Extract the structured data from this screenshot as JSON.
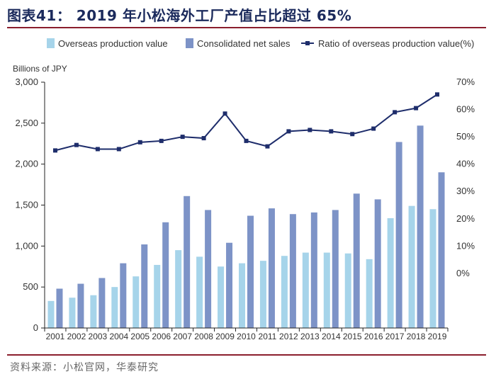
{
  "title": "图表41： 2019 年小松海外工厂产值占比超过 65%",
  "source": "资料来源：小松官网，华泰研究",
  "colors": {
    "overseas": "#a6d4ea",
    "consolidated": "#7d93c7",
    "ratio": "#1e2d6b",
    "axis": "#222222",
    "title": "#1b2a5c",
    "rule": "#8b1e2d"
  },
  "chart_data": {
    "type": "bar",
    "ylabel": "Billions of JPY",
    "ylim": [
      0,
      3000
    ],
    "y_ticks": [
      "0",
      "500",
      "1,000",
      "1,500",
      "2,000",
      "2,500",
      "3,000"
    ],
    "y2lim": [
      -20,
      70
    ],
    "y2_ticks": [
      "0%",
      "10%",
      "20%",
      "30%",
      "40%",
      "50%",
      "60%",
      "70%"
    ],
    "categories": [
      "2001",
      "2002",
      "2003",
      "2004",
      "2005",
      "2006",
      "2007",
      "2008",
      "2009",
      "2010",
      "2011",
      "2012",
      "2013",
      "2014",
      "2015",
      "2016",
      "2017",
      "2018",
      "2019"
    ],
    "series": [
      {
        "name": "Overseas production value",
        "type": "bar",
        "values": [
          330,
          370,
          400,
          500,
          630,
          770,
          950,
          870,
          750,
          790,
          820,
          880,
          920,
          920,
          910,
          840,
          1340,
          1490,
          1450
        ]
      },
      {
        "name": "Consolidated net sales",
        "type": "bar",
        "values": [
          480,
          540,
          610,
          790,
          1020,
          1290,
          1610,
          1440,
          1040,
          1370,
          1460,
          1390,
          1410,
          1440,
          1640,
          1570,
          2270,
          2470,
          1900
        ]
      },
      {
        "name": "Ratio of overseas production value(%)",
        "type": "line",
        "axis": "right",
        "values": [
          45,
          47,
          45.5,
          45.5,
          48,
          48.5,
          50,
          49.5,
          58.5,
          48.5,
          46.5,
          52,
          52.5,
          52,
          51,
          53,
          59,
          60.5,
          65.5
        ]
      }
    ]
  }
}
